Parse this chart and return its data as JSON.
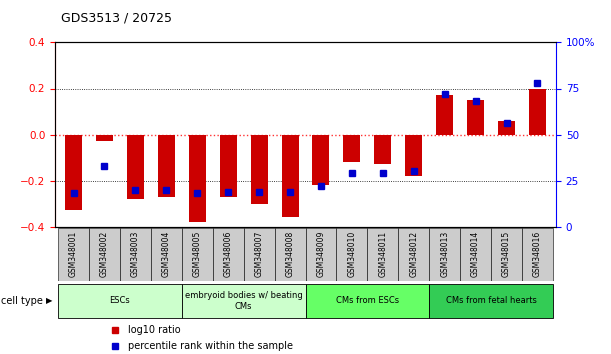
{
  "title": "GDS3513 / 20725",
  "samples": [
    "GSM348001",
    "GSM348002",
    "GSM348003",
    "GSM348004",
    "GSM348005",
    "GSM348006",
    "GSM348007",
    "GSM348008",
    "GSM348009",
    "GSM348010",
    "GSM348011",
    "GSM348012",
    "GSM348013",
    "GSM348014",
    "GSM348015",
    "GSM348016"
  ],
  "log10_ratio": [
    -0.33,
    -0.03,
    -0.28,
    -0.27,
    -0.38,
    -0.27,
    -0.3,
    -0.36,
    -0.22,
    -0.12,
    -0.13,
    -0.18,
    0.17,
    0.15,
    0.06,
    0.2
  ],
  "percentile_rank": [
    18,
    33,
    20,
    20,
    18,
    19,
    19,
    19,
    22,
    29,
    29,
    30,
    72,
    68,
    56,
    78
  ],
  "bar_color_red": "#cc0000",
  "bar_color_blue": "#0000cc",
  "ylim_left": [
    -0.4,
    0.4
  ],
  "ylim_right": [
    0,
    100
  ],
  "yticks_left": [
    -0.4,
    -0.2,
    0.0,
    0.2,
    0.4
  ],
  "yticks_right": [
    0,
    25,
    50,
    75,
    100
  ],
  "ytick_labels_right": [
    "0",
    "25",
    "50",
    "75",
    "100%"
  ],
  "cell_type_groups": [
    {
      "label": "ESCs",
      "start": 0,
      "end": 3,
      "color": "#ccffcc"
    },
    {
      "label": "embryoid bodies w/ beating\nCMs",
      "start": 4,
      "end": 7,
      "color": "#ccffcc"
    },
    {
      "label": "CMs from ESCs",
      "start": 8,
      "end": 11,
      "color": "#66ff66"
    },
    {
      "label": "CMs from fetal hearts",
      "start": 12,
      "end": 15,
      "color": "#33cc55"
    }
  ],
  "cell_type_label": "cell type",
  "legend_red": "log10 ratio",
  "legend_blue": "percentile rank within the sample",
  "hline_color_red": "#ff3333",
  "bg_color": "#ffffff",
  "sample_box_color": "#cccccc",
  "bar_width": 0.55,
  "blue_marker_size": 5
}
